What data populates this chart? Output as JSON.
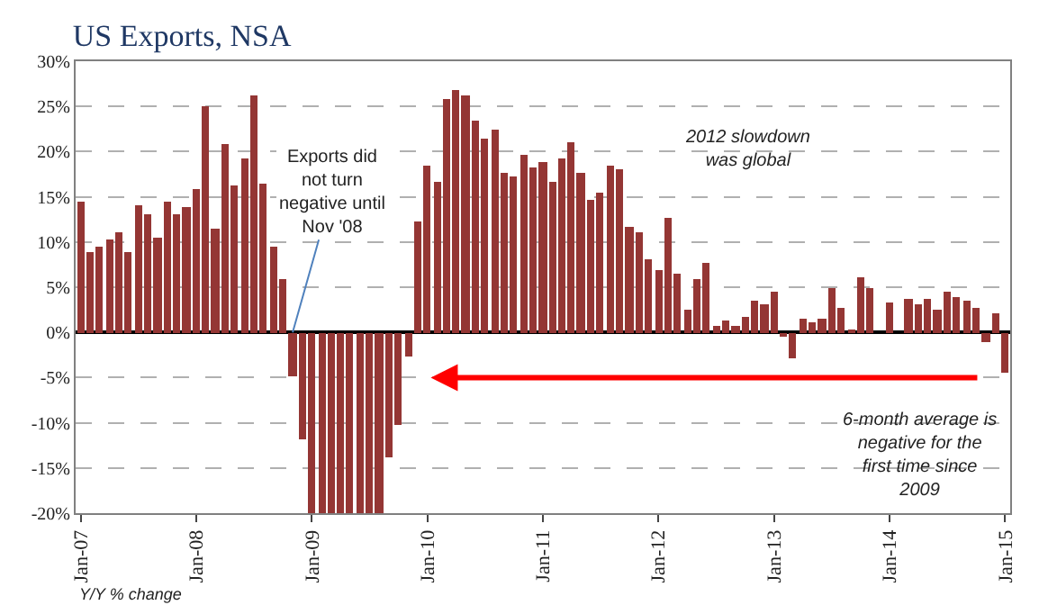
{
  "chart_data": {
    "type": "bar",
    "title": "US Exports, NSA",
    "x": [
      "2007-01",
      "2007-02",
      "2007-03",
      "2007-04",
      "2007-05",
      "2007-06",
      "2007-07",
      "2007-08",
      "2007-09",
      "2007-10",
      "2007-11",
      "2007-12",
      "2008-01",
      "2008-02",
      "2008-03",
      "2008-04",
      "2008-05",
      "2008-06",
      "2008-07",
      "2008-08",
      "2008-09",
      "2008-10",
      "2008-11",
      "2008-12",
      "2009-01",
      "2009-02",
      "2009-03",
      "2009-04",
      "2009-05",
      "2009-06",
      "2009-07",
      "2009-08",
      "2009-09",
      "2009-10",
      "2009-11",
      "2009-12",
      "2010-01",
      "2010-02",
      "2010-03",
      "2010-04",
      "2010-05",
      "2010-06",
      "2010-07",
      "2010-08",
      "2010-09",
      "2010-10",
      "2010-11",
      "2010-12",
      "2011-01",
      "2011-02",
      "2011-03",
      "2011-04",
      "2011-05",
      "2011-06",
      "2011-07",
      "2011-08",
      "2011-09",
      "2011-10",
      "2011-11",
      "2011-12",
      "2012-01",
      "2012-02",
      "2012-03",
      "2012-04",
      "2012-05",
      "2012-06",
      "2012-07",
      "2012-08",
      "2012-09",
      "2012-10",
      "2012-11",
      "2012-12",
      "2013-01",
      "2013-02",
      "2013-03",
      "2013-04",
      "2013-05",
      "2013-06",
      "2013-07",
      "2013-08",
      "2013-09",
      "2013-10",
      "2013-11",
      "2013-12",
      "2014-01",
      "2014-02",
      "2014-03",
      "2014-04",
      "2014-05",
      "2014-06",
      "2014-07",
      "2014-08",
      "2014-09",
      "2014-10",
      "2014-11",
      "2014-12",
      "2015-01"
    ],
    "values": [
      14.5,
      8.9,
      9.4,
      10.2,
      11.1,
      8.9,
      14.1,
      13.1,
      10.5,
      14.5,
      13.1,
      13.8,
      15.8,
      25.0,
      11.4,
      20.9,
      16.3,
      19.2,
      26.3,
      16.5,
      9.4,
      5.8,
      -4.8,
      -11.8,
      -20,
      -20,
      -20,
      -20,
      -20,
      -20,
      -20,
      -20,
      -13.9,
      -10.3,
      -2.7,
      12.2,
      18.5,
      16.7,
      25.8,
      26.9,
      26.2,
      23.5,
      21.5,
      22.4,
      17.6,
      17.3,
      19.6,
      18.2,
      18.9,
      16.7,
      19.3,
      21.1,
      17.6,
      14.7,
      15.5,
      18.5,
      18.0,
      11.6,
      11.1,
      8.0,
      6.9,
      12.7,
      6.4,
      2.5,
      5.8,
      7.6,
      0.7,
      1.3,
      0.7,
      1.8,
      3.5,
      3.1,
      4.5,
      -0.4,
      -2.9,
      1.6,
      1.1,
      1.6,
      4.9,
      2.7,
      0.2,
      6.0,
      4.9,
      0,
      3.3,
      0,
      3.8,
      3.1,
      3.8,
      2.5,
      4.5,
      4.0,
      3.6,
      2.7,
      -1.1,
      2.2,
      -4.5
    ],
    "color": "#943634",
    "ylim": [
      -20,
      30
    ],
    "yticks": [
      {
        "value": -20,
        "label": "-20%"
      },
      {
        "value": -15,
        "label": "-15%"
      },
      {
        "value": -10,
        "label": "-10%"
      },
      {
        "value": -5,
        "label": "-5%"
      },
      {
        "value": 0,
        "label": "0%"
      },
      {
        "value": 5,
        "label": "5%"
      },
      {
        "value": 10,
        "label": "10%"
      },
      {
        "value": 15,
        "label": "15%"
      },
      {
        "value": 20,
        "label": "20%"
      },
      {
        "value": 25,
        "label": "25%"
      },
      {
        "value": 30,
        "label": "30%"
      }
    ],
    "xticks": [
      {
        "value": "2007-01",
        "label": "Jan-07"
      },
      {
        "value": "2008-01",
        "label": "Jan-08"
      },
      {
        "value": "2009-01",
        "label": "Jan-09"
      },
      {
        "value": "2010-01",
        "label": "Jan-10"
      },
      {
        "value": "2011-01",
        "label": "Jan-11"
      },
      {
        "value": "2012-01",
        "label": "Jan-12"
      },
      {
        "value": "2013-01",
        "label": "Jan-13"
      },
      {
        "value": "2014-01",
        "label": "Jan-14"
      },
      {
        "value": "2015-01",
        "label": "Jan-15"
      }
    ],
    "annotations": [
      {
        "text": "Exports did not turn negative until Nov '08",
        "x": "2008-11",
        "y": 0
      },
      {
        "text": "2012 slowdown was global"
      },
      "6-month average is negative for the first time since 2009",
      {
        "text": "Y/Y % change"
      }
    ],
    "xlim": [
      "2006-12-16",
      "2015-01-17"
    ],
    "grid": "y"
  }
}
